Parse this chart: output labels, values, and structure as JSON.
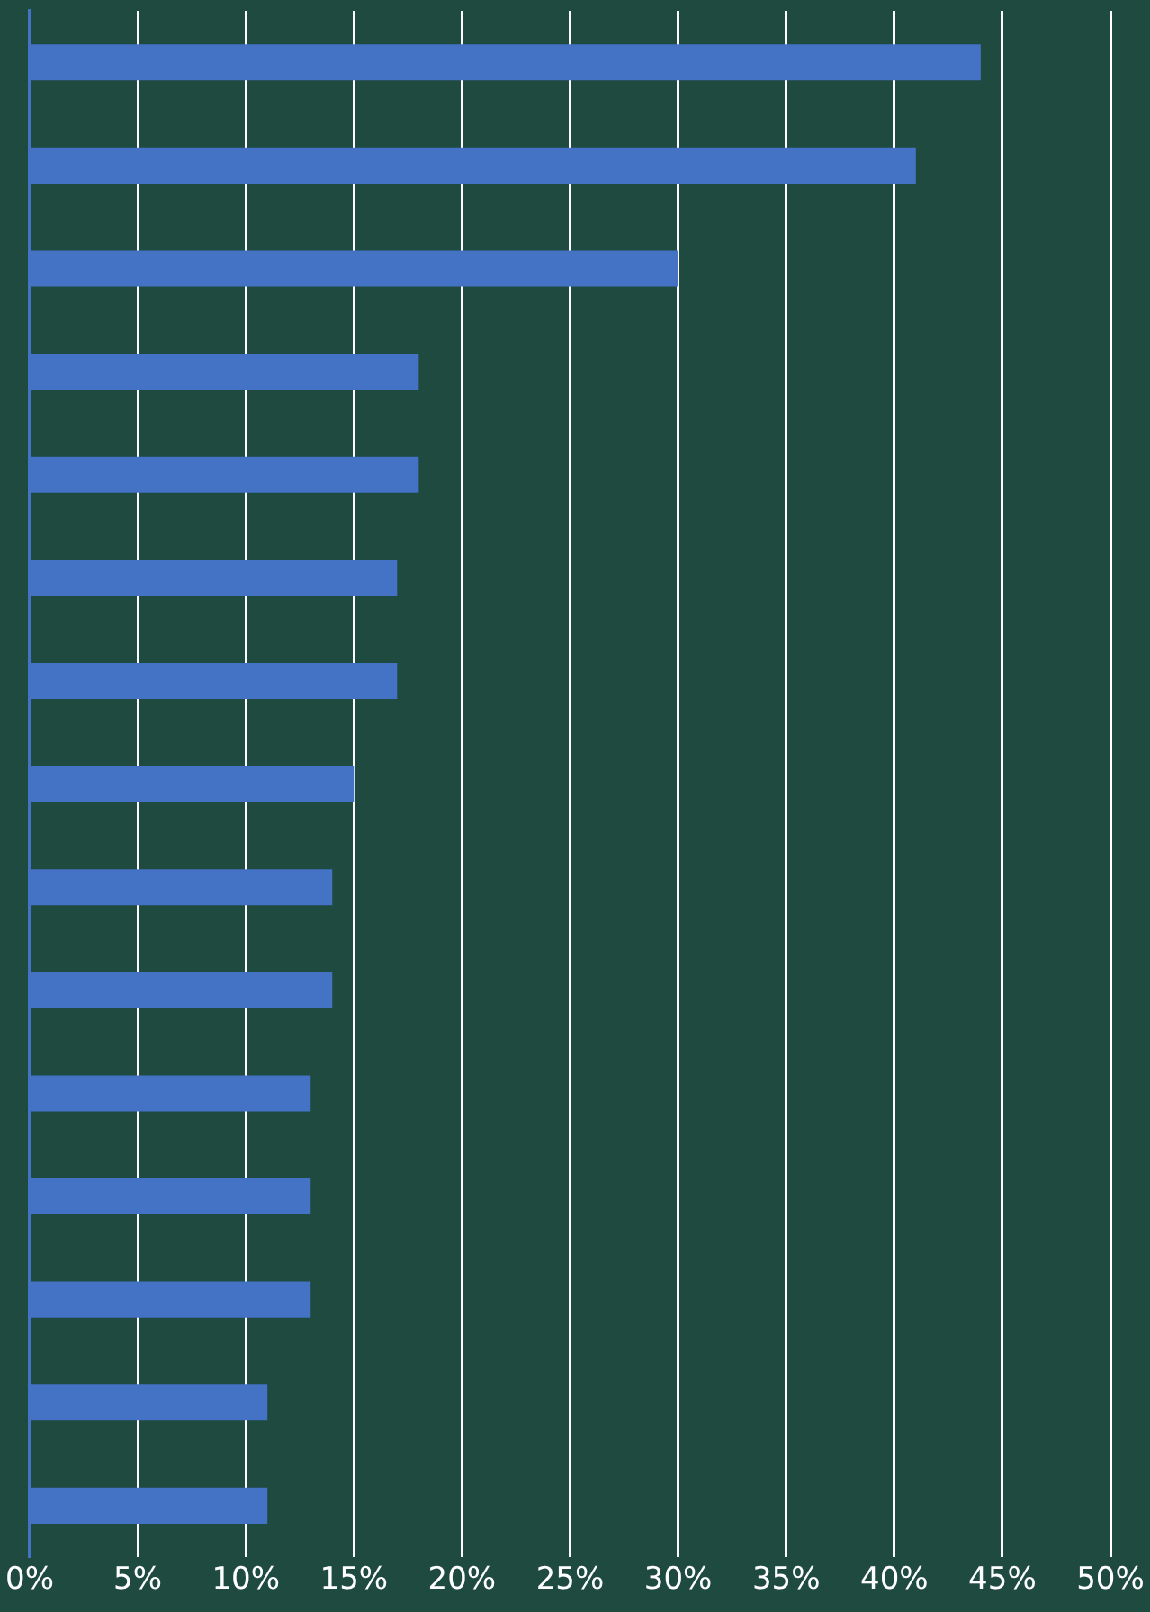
{
  "chart_data": {
    "type": "bar",
    "orientation": "horizontal",
    "categories": [
      null,
      null,
      null,
      null,
      null,
      null,
      null,
      null,
      null,
      null,
      null,
      null,
      null,
      null,
      null
    ],
    "values": [
      44,
      41,
      30,
      18,
      18,
      17,
      17,
      15,
      14,
      14,
      13,
      13,
      13,
      11,
      11
    ],
    "color": "#4472c4",
    "xlim": [
      0,
      50
    ],
    "xticks": [
      {
        "value": 0,
        "label": "0%"
      },
      {
        "value": 5,
        "label": "5%"
      },
      {
        "value": 10,
        "label": "10%"
      },
      {
        "value": 15,
        "label": "15%"
      },
      {
        "value": 20,
        "label": "20%"
      },
      {
        "value": 25,
        "label": "25%"
      },
      {
        "value": 30,
        "label": "30%"
      },
      {
        "value": 35,
        "label": "35%"
      },
      {
        "value": 40,
        "label": "40%"
      },
      {
        "value": 45,
        "label": "45%"
      },
      {
        "value": 50,
        "label": "50%"
      }
    ],
    "grid": "x"
  }
}
